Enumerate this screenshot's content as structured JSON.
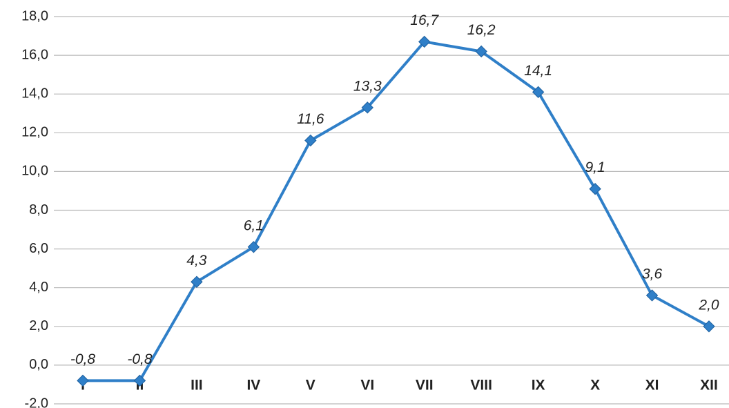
{
  "chart_data": {
    "type": "line",
    "categories": [
      "I",
      "II",
      "III",
      "IV",
      "V",
      "VI",
      "VII",
      "VIII",
      "IX",
      "X",
      "XI",
      "XII"
    ],
    "series": [
      {
        "name": null,
        "color": "#2f7fc8",
        "values": [
          -0.8,
          -0.8,
          4.3,
          6.1,
          11.6,
          13.3,
          16.7,
          16.2,
          14.1,
          9.1,
          3.6,
          2.0
        ],
        "value_labels": [
          "-0,8",
          "-0,8",
          "4,3",
          "6,1",
          "11,6",
          "13,3",
          "16,7",
          "16,2",
          "14,1",
          "9,1",
          "3,6",
          "2,0"
        ]
      }
    ],
    "ylim": [
      -2,
      18
    ],
    "yticks": [
      {
        "value": -2,
        "label": "-2,0"
      },
      {
        "value": 0,
        "label": "0,0"
      },
      {
        "value": 2,
        "label": "2,0"
      },
      {
        "value": 4,
        "label": "4,0"
      },
      {
        "value": 6,
        "label": "6,0"
      },
      {
        "value": 8,
        "label": "8,0"
      },
      {
        "value": 10,
        "label": "10,0"
      },
      {
        "value": 12,
        "label": "12,0"
      },
      {
        "value": 14,
        "label": "14,0"
      },
      {
        "value": 16,
        "label": "16,0"
      },
      {
        "value": 18,
        "label": "18,0"
      }
    ],
    "grid": true
  }
}
